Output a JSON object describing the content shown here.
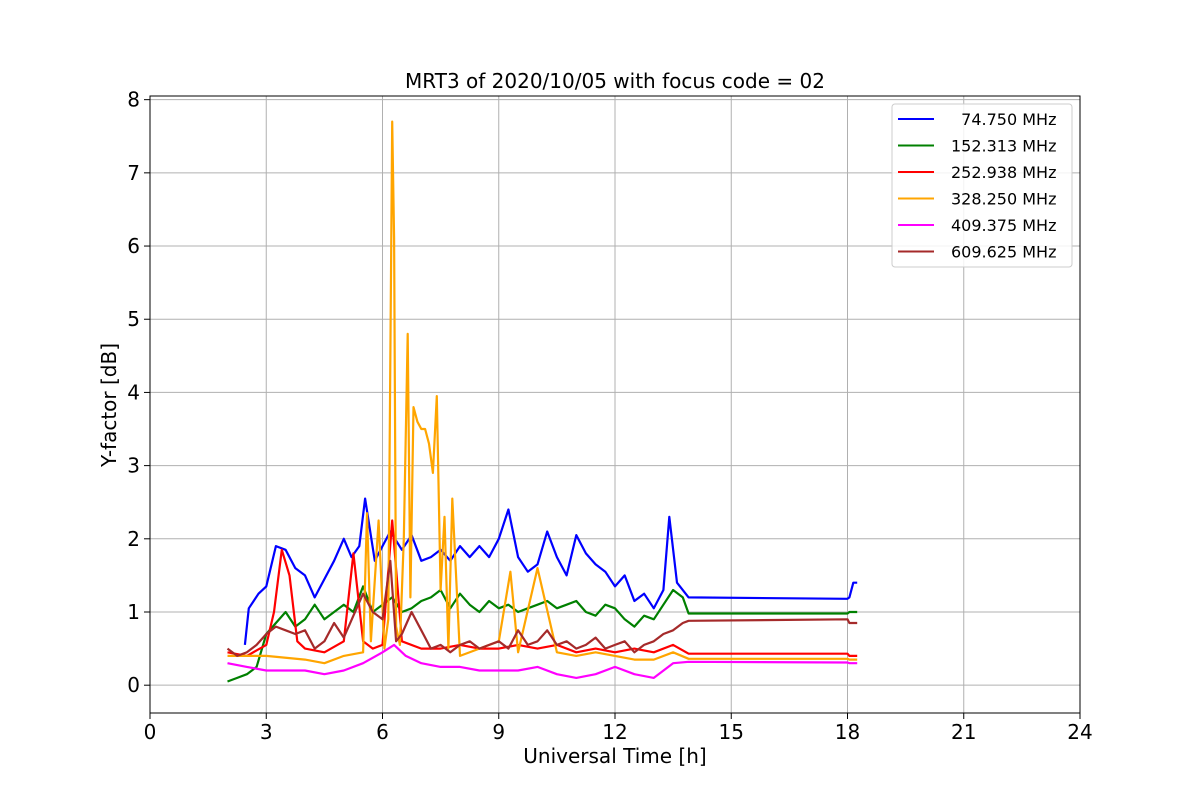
{
  "chart_data": {
    "type": "line",
    "title": "MRT3 of 2020/10/05 with focus code = 02",
    "xlabel": "Universal Time [h]",
    "ylabel": "Y-factor [dB]",
    "xlim": [
      0,
      24
    ],
    "ylim": [
      -0.38,
      8.05
    ],
    "xticks": [
      0,
      3,
      6,
      9,
      12,
      15,
      18,
      21,
      24
    ],
    "yticks": [
      0,
      1,
      2,
      3,
      4,
      5,
      6,
      7,
      8
    ],
    "grid": true,
    "legend_position": "top-right",
    "series": [
      {
        "name": "  74.750 MHz",
        "color": "#0000ff",
        "x": [
          2.45,
          2.55,
          2.8,
          3.0,
          3.25,
          3.5,
          3.75,
          4.0,
          4.25,
          4.5,
          4.75,
          5.0,
          5.2,
          5.4,
          5.55,
          5.8,
          6.0,
          6.2,
          6.5,
          6.75,
          7.0,
          7.25,
          7.5,
          7.75,
          8.0,
          8.25,
          8.5,
          8.75,
          9.0,
          9.25,
          9.5,
          9.75,
          10.0,
          10.25,
          10.5,
          10.75,
          11.0,
          11.25,
          11.5,
          11.75,
          12.0,
          12.25,
          12.5,
          12.75,
          13.0,
          13.25,
          13.4,
          13.6,
          13.9,
          18.0,
          18.05,
          18.15,
          18.25
        ],
        "y": [
          0.55,
          1.05,
          1.25,
          1.35,
          1.9,
          1.85,
          1.6,
          1.5,
          1.2,
          1.45,
          1.7,
          2.0,
          1.75,
          1.9,
          2.55,
          1.7,
          1.9,
          2.1,
          1.85,
          2.05,
          1.7,
          1.75,
          1.85,
          1.7,
          1.9,
          1.75,
          1.9,
          1.75,
          2.0,
          2.4,
          1.75,
          1.55,
          1.65,
          2.1,
          1.75,
          1.5,
          2.05,
          1.8,
          1.65,
          1.55,
          1.35,
          1.5,
          1.15,
          1.25,
          1.05,
          1.3,
          2.3,
          1.4,
          1.2,
          1.18,
          1.2,
          1.4,
          1.4
        ]
      },
      {
        "name": "152.313 MHz",
        "color": "#008000",
        "x": [
          2.0,
          2.25,
          2.5,
          2.75,
          3.0,
          3.25,
          3.5,
          3.75,
          4.0,
          4.25,
          4.5,
          4.75,
          5.0,
          5.25,
          5.5,
          5.75,
          6.0,
          6.25,
          6.5,
          6.75,
          7.0,
          7.25,
          7.5,
          7.75,
          8.0,
          8.25,
          8.5,
          8.75,
          9.0,
          9.25,
          9.5,
          9.75,
          10.0,
          10.25,
          10.5,
          10.75,
          11.0,
          11.25,
          11.5,
          11.75,
          12.0,
          12.25,
          12.5,
          12.75,
          13.0,
          13.25,
          13.5,
          13.75,
          13.9,
          18.0,
          18.05,
          18.25
        ],
        "y": [
          0.05,
          0.1,
          0.15,
          0.25,
          0.7,
          0.85,
          1.0,
          0.8,
          0.9,
          1.1,
          0.9,
          1.0,
          1.1,
          1.0,
          1.35,
          1.0,
          1.1,
          1.2,
          1.0,
          1.05,
          1.15,
          1.2,
          1.3,
          1.05,
          1.25,
          1.1,
          1.0,
          1.15,
          1.05,
          1.1,
          1.0,
          1.05,
          1.1,
          1.15,
          1.05,
          1.1,
          1.15,
          1.0,
          0.95,
          1.1,
          1.05,
          0.9,
          0.8,
          0.95,
          0.9,
          1.1,
          1.3,
          1.2,
          0.98,
          0.98,
          1.0,
          1.0
        ]
      },
      {
        "name": "252.938 MHz",
        "color": "#ff0000",
        "x": [
          2.0,
          2.5,
          3.0,
          3.2,
          3.4,
          3.6,
          3.8,
          4.0,
          4.5,
          5.0,
          5.25,
          5.5,
          5.75,
          6.0,
          6.25,
          6.5,
          7.0,
          7.5,
          8.0,
          8.5,
          9.0,
          9.5,
          10.0,
          10.5,
          11.0,
          11.5,
          12.0,
          12.5,
          13.0,
          13.5,
          13.9,
          18.0,
          18.05,
          18.25
        ],
        "y": [
          0.45,
          0.4,
          0.55,
          1.0,
          1.85,
          1.5,
          0.6,
          0.5,
          0.45,
          0.6,
          1.8,
          0.6,
          0.5,
          0.55,
          2.25,
          0.6,
          0.5,
          0.5,
          0.55,
          0.5,
          0.5,
          0.55,
          0.5,
          0.55,
          0.45,
          0.5,
          0.45,
          0.5,
          0.45,
          0.55,
          0.43,
          0.43,
          0.4,
          0.4
        ]
      },
      {
        "name": "328.250 MHz",
        "color": "#ffa500",
        "x": [
          2.0,
          3.0,
          4.0,
          4.5,
          5.0,
          5.5,
          5.6,
          5.7,
          5.9,
          6.05,
          6.15,
          6.25,
          6.3,
          6.35,
          6.45,
          6.55,
          6.65,
          6.72,
          6.8,
          6.9,
          7.0,
          7.1,
          7.2,
          7.3,
          7.4,
          7.5,
          7.6,
          7.7,
          7.8,
          8.0,
          8.5,
          9.0,
          9.3,
          9.5,
          10.0,
          10.5,
          11.0,
          11.5,
          12.0,
          12.5,
          13.0,
          13.5,
          13.9,
          18.0,
          18.05,
          18.25
        ],
        "y": [
          0.4,
          0.4,
          0.35,
          0.3,
          0.4,
          0.45,
          2.35,
          0.6,
          2.25,
          0.5,
          0.9,
          7.7,
          6.1,
          0.8,
          0.55,
          2.0,
          4.8,
          1.2,
          3.8,
          3.6,
          3.5,
          3.5,
          3.3,
          2.9,
          3.95,
          1.3,
          2.3,
          0.5,
          2.55,
          0.4,
          0.5,
          0.6,
          1.55,
          0.45,
          1.6,
          0.45,
          0.4,
          0.45,
          0.4,
          0.35,
          0.35,
          0.45,
          0.36,
          0.36,
          0.35,
          0.35
        ]
      },
      {
        "name": "409.375 MHz",
        "color": "#ff00ff",
        "x": [
          2.0,
          2.5,
          3.0,
          3.5,
          4.0,
          4.5,
          5.0,
          5.5,
          6.0,
          6.3,
          6.6,
          7.0,
          7.5,
          8.0,
          8.5,
          9.0,
          9.5,
          10.0,
          10.5,
          11.0,
          11.5,
          12.0,
          12.5,
          13.0,
          13.5,
          13.9,
          18.0,
          18.05,
          18.25
        ],
        "y": [
          0.3,
          0.25,
          0.2,
          0.2,
          0.2,
          0.15,
          0.2,
          0.3,
          0.45,
          0.55,
          0.4,
          0.3,
          0.25,
          0.25,
          0.2,
          0.2,
          0.2,
          0.25,
          0.15,
          0.1,
          0.15,
          0.25,
          0.15,
          0.1,
          0.3,
          0.32,
          0.31,
          0.3,
          0.3
        ]
      },
      {
        "name": "609.625 MHz",
        "color": "#a52a2a",
        "x": [
          2.0,
          2.25,
          2.5,
          2.75,
          3.0,
          3.25,
          3.5,
          3.75,
          4.0,
          4.25,
          4.5,
          4.75,
          5.0,
          5.25,
          5.5,
          5.75,
          6.0,
          6.2,
          6.35,
          6.5,
          6.75,
          7.0,
          7.25,
          7.5,
          7.75,
          8.0,
          8.25,
          8.5,
          8.75,
          9.0,
          9.25,
          9.5,
          9.75,
          10.0,
          10.25,
          10.5,
          10.75,
          11.0,
          11.25,
          11.5,
          11.75,
          12.0,
          12.25,
          12.5,
          12.75,
          13.0,
          13.25,
          13.5,
          13.75,
          13.9,
          18.0,
          18.05,
          18.25
        ],
        "y": [
          0.5,
          0.4,
          0.45,
          0.55,
          0.7,
          0.8,
          0.75,
          0.7,
          0.75,
          0.5,
          0.6,
          0.85,
          0.65,
          0.95,
          1.25,
          1.0,
          0.9,
          1.7,
          0.6,
          0.7,
          1.0,
          0.75,
          0.5,
          0.55,
          0.45,
          0.55,
          0.6,
          0.5,
          0.55,
          0.6,
          0.5,
          0.75,
          0.55,
          0.6,
          0.75,
          0.55,
          0.6,
          0.5,
          0.55,
          0.65,
          0.5,
          0.55,
          0.6,
          0.45,
          0.55,
          0.6,
          0.7,
          0.75,
          0.85,
          0.88,
          0.9,
          0.85,
          0.85
        ]
      }
    ]
  }
}
